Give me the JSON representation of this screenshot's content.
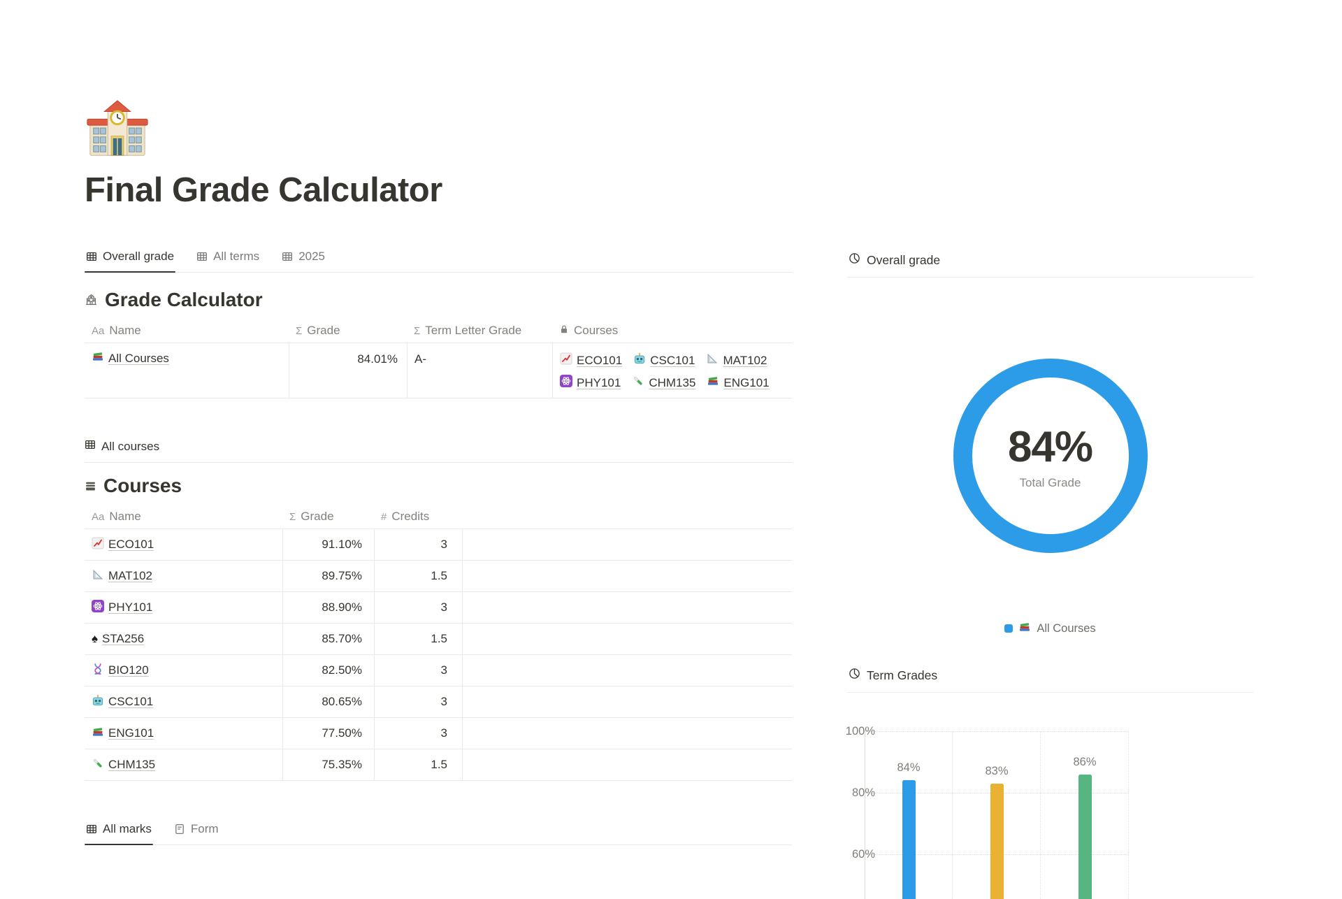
{
  "page": {
    "icon": "school",
    "title": "Final Grade Calculator"
  },
  "top_tabs": [
    {
      "label": "Overall grade",
      "icon": "table",
      "active": true
    },
    {
      "label": "All terms",
      "icon": "table",
      "active": false
    },
    {
      "label": "2025",
      "icon": "table",
      "active": false
    }
  ],
  "grade_calculator": {
    "title": "Grade Calculator",
    "title_icon": "school-gray",
    "columns": [
      {
        "label": "Name",
        "icon": "text"
      },
      {
        "label": "Grade",
        "icon": "sum"
      },
      {
        "label": "Term Letter Grade",
        "icon": "sum"
      },
      {
        "label": "Courses",
        "icon": "lock"
      }
    ],
    "rows": [
      {
        "name": "All Courses",
        "icon": "books",
        "grade": "84.01%",
        "term_letter_grade": "A-",
        "courses": [
          {
            "label": "ECO101",
            "icon": "chart-up"
          },
          {
            "label": "CSC101",
            "icon": "robot"
          },
          {
            "label": "MAT102",
            "icon": "ruler"
          },
          {
            "label": "PHY101",
            "icon": "atom"
          },
          {
            "label": "CHM135",
            "icon": "test-tube"
          },
          {
            "label": "ENG101",
            "icon": "books"
          }
        ]
      }
    ]
  },
  "courses_view_tab": {
    "label": "All courses",
    "icon": "table"
  },
  "courses": {
    "title": "Courses",
    "title_icon": "database",
    "columns": [
      {
        "label": "Name",
        "icon": "text"
      },
      {
        "label": "Grade",
        "icon": "sum"
      },
      {
        "label": "Credits",
        "icon": "hash"
      }
    ],
    "rows": [
      {
        "name": "ECO101",
        "icon": "chart-up",
        "grade": "91.10%",
        "credits": "3"
      },
      {
        "name": "MAT102",
        "icon": "ruler",
        "grade": "89.75%",
        "credits": "1.5"
      },
      {
        "name": "PHY101",
        "icon": "atom",
        "grade": "88.90%",
        "credits": "3"
      },
      {
        "name": "STA256",
        "icon": "spade",
        "grade": "85.70%",
        "credits": "1.5"
      },
      {
        "name": "BIO120",
        "icon": "dna",
        "grade": "82.50%",
        "credits": "3"
      },
      {
        "name": "CSC101",
        "icon": "robot",
        "grade": "80.65%",
        "credits": "3"
      },
      {
        "name": "ENG101",
        "icon": "books",
        "grade": "77.50%",
        "credits": "3"
      },
      {
        "name": "CHM135",
        "icon": "test-tube",
        "grade": "75.35%",
        "credits": "1.5"
      }
    ]
  },
  "bottom_tabs": [
    {
      "label": "All marks",
      "icon": "table",
      "active": true
    },
    {
      "label": "Form",
      "icon": "form",
      "active": false
    }
  ],
  "right_panel": {
    "overall_section_title": "Overall grade",
    "overall_section_icon": "pie",
    "donut_center_value": "84%",
    "donut_center_label": "Total Grade",
    "legend_label": "All Courses",
    "legend_icon": "books",
    "term_section_title": "Term Grades",
    "term_section_icon": "pie"
  },
  "colors": {
    "accent_blue": "#2d9ce8",
    "bar_yellow": "#e9b233",
    "bar_green": "#55b67f",
    "text_dark": "#37352f",
    "text_gray": "#7e7d79",
    "divider": "#e9e9e7"
  },
  "chart_data": [
    {
      "type": "pie",
      "title": "Overall grade",
      "series": [
        {
          "name": "All Courses",
          "value": 84
        }
      ],
      "center_value": "84%",
      "center_label": "Total Grade",
      "colors": [
        "#2d9ce8"
      ],
      "legend_position": "bottom"
    },
    {
      "type": "bar",
      "title": "Term Grades",
      "categories": [
        "",
        "",
        ""
      ],
      "values": [
        84,
        83,
        86
      ],
      "data_labels": [
        "84%",
        "83%",
        "86%"
      ],
      "colors": [
        "#2d9ce8",
        "#e9b233",
        "#55b67f"
      ],
      "ylim": [
        60,
        100
      ],
      "yticks": [
        "100%",
        "80%",
        "60%"
      ],
      "grid": "dotted",
      "layout_note": "x-axis category labels clipped at bottom edge of screenshot"
    }
  ]
}
